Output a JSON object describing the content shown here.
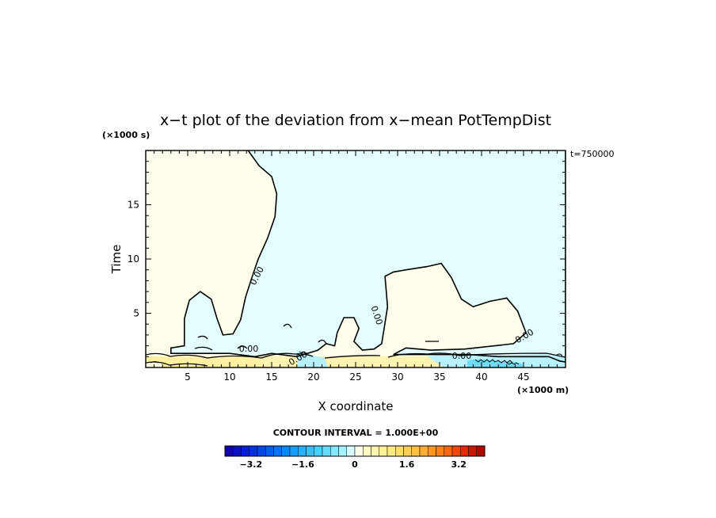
{
  "chart_data": {
    "type": "contour",
    "title": "x−t plot of the deviation from x−mean PotTempDist",
    "xlabel": "X coordinate",
    "ylabel": "Time",
    "x_unit": "(×1000 m)",
    "y_unit": "(×1000 s)",
    "annotation": "t=750000",
    "xlim": [
      0,
      50
    ],
    "ylim": [
      0,
      20
    ],
    "x_ticks": [
      5,
      10,
      15,
      20,
      25,
      30,
      35,
      40,
      45
    ],
    "y_ticks": [
      5,
      10,
      15
    ],
    "contour_label": "0.00",
    "contour_interval": "CONTOUR INTERVAL = 1.000E+00",
    "colorbar": {
      "min": -4,
      "max": 4,
      "n_bins": 32,
      "tick_labels": [
        "−3.2",
        "−1.6",
        "0",
        "1.6",
        "3.2"
      ],
      "tick_values": [
        -3.2,
        -1.6,
        0,
        1.6,
        3.2
      ]
    },
    "zero_contour": [
      [
        12.2,
        20
      ],
      [
        13.5,
        18.6
      ],
      [
        15.0,
        17.6
      ],
      [
        15.6,
        16.0
      ],
      [
        15.4,
        13.9
      ],
      [
        14.5,
        11.9
      ],
      [
        13.4,
        10.0
      ],
      [
        12.6,
        8.2
      ],
      [
        11.9,
        6.5
      ],
      [
        11.3,
        4.4
      ],
      [
        10.4,
        3.1
      ],
      [
        9.2,
        3.0
      ],
      [
        8.5,
        4.5
      ],
      [
        7.8,
        6.3
      ],
      [
        6.5,
        7.0
      ],
      [
        5.2,
        6.2
      ],
      [
        4.6,
        4.5
      ],
      [
        4.6,
        2.0
      ],
      [
        3.0,
        1.8
      ],
      [
        3.0,
        1.3
      ],
      [
        10.0,
        1.3
      ],
      [
        13.0,
        1.0
      ],
      [
        15.0,
        1.3
      ],
      [
        18.0,
        1.0
      ],
      [
        20.5,
        1.6
      ],
      [
        21.5,
        2.2
      ],
      [
        22.5,
        2.0
      ],
      [
        22.8,
        3.2
      ],
      [
        23.6,
        4.6
      ],
      [
        24.8,
        4.6
      ],
      [
        25.4,
        3.6
      ],
      [
        24.8,
        2.4
      ],
      [
        25.8,
        1.6
      ],
      [
        27.2,
        1.7
      ],
      [
        28.1,
        2.2
      ],
      [
        28.4,
        3.6
      ],
      [
        28.8,
        5.6
      ],
      [
        28.5,
        8.4
      ],
      [
        29.5,
        8.8
      ],
      [
        31.0,
        9.0
      ],
      [
        33.5,
        9.3
      ],
      [
        35.2,
        9.6
      ],
      [
        36.4,
        8.3
      ],
      [
        37.6,
        6.3
      ],
      [
        39.0,
        5.6
      ],
      [
        41.0,
        6.1
      ],
      [
        43.0,
        6.4
      ],
      [
        44.3,
        5.2
      ],
      [
        45.3,
        3.2
      ],
      [
        43.8,
        2.2
      ],
      [
        38.0,
        1.7
      ],
      [
        34.0,
        1.6
      ],
      [
        31.0,
        1.8
      ],
      [
        29.5,
        1.2
      ],
      [
        38.5,
        1.2
      ],
      [
        42.0,
        1.0
      ],
      [
        48.0,
        1.0
      ],
      [
        49.3,
        0.6
      ],
      [
        50.0,
        0.5
      ],
      [
        50.0,
        20
      ]
    ]
  }
}
